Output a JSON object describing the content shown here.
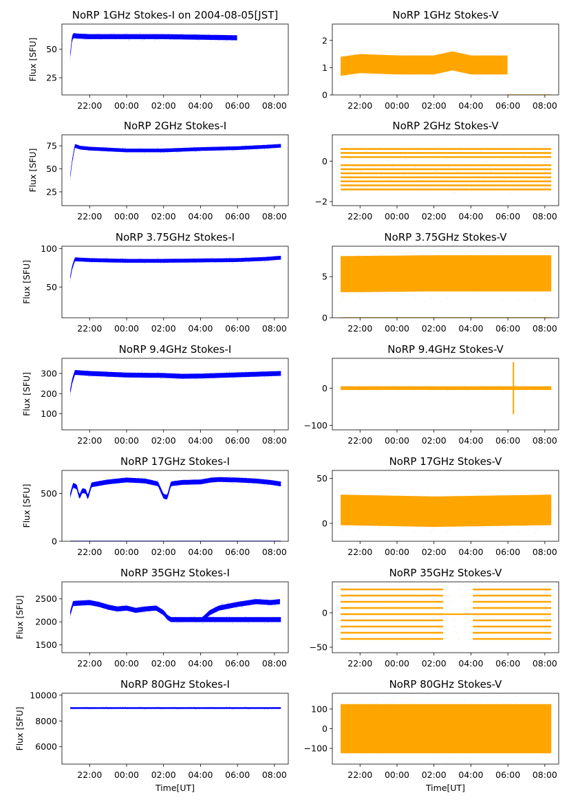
{
  "chart_data": [
    {
      "type": "scatter",
      "title": "NoRP 1GHz Stokes-I on 2004-08-05[JST]",
      "ylabel": "Flux [SFU]",
      "xlabel": "",
      "color": "#0000ff",
      "xlim": [
        20.5,
        32.75
      ],
      "ylim": [
        10,
        72
      ],
      "yticks": [
        25,
        50
      ],
      "yticklabels": [
        "25",
        "50"
      ],
      "xticks": [
        22,
        24,
        26,
        28,
        30,
        32
      ],
      "xticklabels": [
        "22:00",
        "00:00",
        "02:00",
        "04:00",
        "06:00",
        "08:00"
      ],
      "band": [
        [
          20.95,
          45
        ],
        [
          21.0,
          52
        ],
        [
          21.05,
          60
        ],
        [
          21.15,
          62
        ],
        [
          21.3,
          61.5
        ],
        [
          22,
          61
        ],
        [
          24,
          61
        ],
        [
          26,
          61
        ],
        [
          28,
          60.5
        ],
        [
          30,
          60
        ]
      ],
      "band_halfwidth": 2.2,
      "band_end": 29.98
    },
    {
      "type": "scatter",
      "title": "NoRP 1GHz Stokes-V",
      "ylabel": "",
      "xlabel": "",
      "color": "#ffa500",
      "xlim": [
        20.5,
        32.75
      ],
      "ylim": [
        0,
        2.6
      ],
      "yticks": [
        0,
        1,
        2
      ],
      "yticklabels": [
        "0",
        "1",
        "2"
      ],
      "xticks": [
        22,
        24,
        26,
        28,
        30,
        32
      ],
      "xticklabels": [
        "22:00",
        "00:00",
        "02:00",
        "04:00",
        "06:00",
        "08:00"
      ],
      "band": [
        [
          20.95,
          1.05
        ],
        [
          22,
          1.15
        ],
        [
          24,
          1.1
        ],
        [
          26,
          1.1
        ],
        [
          27,
          1.25
        ],
        [
          28,
          1.1
        ],
        [
          29.9,
          1.1
        ]
      ],
      "band_halfwidth": 0.35,
      "band_end": 29.98,
      "baseline": 0
    },
    {
      "type": "scatter",
      "title": "NoRP 2GHz Stokes-I",
      "ylabel": "Flux [SFU]",
      "xlabel": "",
      "color": "#0000ff",
      "xlim": [
        20.5,
        32.75
      ],
      "ylim": [
        10,
        87
      ],
      "yticks": [
        25,
        50,
        75
      ],
      "yticklabels": [
        "25",
        "50",
        "75"
      ],
      "xticks": [
        22,
        24,
        26,
        28,
        30,
        32
      ],
      "xticklabels": [
        "22:00",
        "00:00",
        "02:00",
        "04:00",
        "06:00",
        "08:00"
      ],
      "band": [
        [
          20.95,
          42
        ],
        [
          21.05,
          58
        ],
        [
          21.2,
          75
        ],
        [
          21.5,
          73
        ],
        [
          22,
          72
        ],
        [
          24,
          70
        ],
        [
          26,
          70
        ],
        [
          28,
          71.5
        ],
        [
          30,
          72.5
        ],
        [
          31.5,
          74
        ],
        [
          32.3,
          75
        ]
      ],
      "band_halfwidth": 2.0,
      "band_end": 32.35
    },
    {
      "type": "scatter",
      "title": "NoRP 2GHz Stokes-V",
      "ylabel": "",
      "xlabel": "",
      "color": "#ffa500",
      "xlim": [
        20.5,
        32.75
      ],
      "ylim": [
        -2.2,
        1.3
      ],
      "yticks": [
        -2,
        0
      ],
      "yticklabels": [
        "−2",
        "0"
      ],
      "xticks": [
        22,
        24,
        26,
        28,
        30,
        32
      ],
      "xticklabels": [
        "22:00",
        "00:00",
        "02:00",
        "04:00",
        "06:00",
        "08:00"
      ],
      "levels": [
        -1.4,
        -1.2,
        -1.0,
        -0.8,
        -0.6,
        -0.4,
        -0.2,
        0.2,
        0.4,
        0.6
      ],
      "band_end": 32.35
    },
    {
      "type": "scatter",
      "title": "NoRP 3.75GHz Stokes-I",
      "ylabel": "Flux [SFU]",
      "xlabel": "",
      "color": "#0000ff",
      "xlim": [
        20.5,
        32.75
      ],
      "ylim": [
        10,
        103
      ],
      "yticks": [
        50,
        100
      ],
      "yticklabels": [
        "50",
        "100"
      ],
      "xticks": [
        22,
        24,
        26,
        28,
        30,
        32
      ],
      "xticklabels": [
        "22:00",
        "00:00",
        "02:00",
        "04:00",
        "06:00",
        "08:00"
      ],
      "band": [
        [
          20.95,
          62
        ],
        [
          21.05,
          75
        ],
        [
          21.2,
          86
        ],
        [
          22,
          85
        ],
        [
          24,
          84
        ],
        [
          26,
          84
        ],
        [
          28,
          84.5
        ],
        [
          30,
          85
        ],
        [
          31.5,
          86.5
        ],
        [
          32.3,
          88
        ]
      ],
      "band_halfwidth": 2.5,
      "band_end": 32.35
    },
    {
      "type": "scatter",
      "title": "NoRP 3.75GHz Stokes-V",
      "ylabel": "",
      "xlabel": "",
      "color": "#ffa500",
      "xlim": [
        20.5,
        32.75
      ],
      "ylim": [
        0,
        8.7
      ],
      "yticks": [
        0,
        5
      ],
      "yticklabels": [
        "0",
        "5"
      ],
      "xticks": [
        22,
        24,
        26,
        28,
        30,
        32
      ],
      "xticklabels": [
        "22:00",
        "00:00",
        "02:00",
        "04:00",
        "06:00",
        "08:00"
      ],
      "band": [
        [
          20.95,
          5.3
        ],
        [
          26,
          5.4
        ],
        [
          32.3,
          5.4
        ]
      ],
      "band_halfwidth": 2.2,
      "band_end": 32.35,
      "baseline": 0
    },
    {
      "type": "scatter",
      "title": "NoRP 9.4GHz Stokes-I",
      "ylabel": "Flux [SFU]",
      "xlabel": "",
      "color": "#0000ff",
      "xlim": [
        20.5,
        32.75
      ],
      "ylim": [
        20,
        375
      ],
      "yticks": [
        100,
        200,
        300
      ],
      "yticklabels": [
        "100",
        "200",
        "300"
      ],
      "xticks": [
        22,
        24,
        26,
        28,
        30,
        32
      ],
      "xticklabels": [
        "22:00",
        "00:00",
        "02:00",
        "04:00",
        "06:00",
        "08:00"
      ],
      "band": [
        [
          20.95,
          210
        ],
        [
          21.05,
          260
        ],
        [
          21.2,
          305
        ],
        [
          22,
          300
        ],
        [
          24,
          292
        ],
        [
          26,
          290
        ],
        [
          27,
          286
        ],
        [
          28,
          287
        ],
        [
          30,
          293
        ],
        [
          32.3,
          300
        ]
      ],
      "band_halfwidth": 12,
      "band_end": 32.35
    },
    {
      "type": "scatter",
      "title": "NoRP 9.4GHz Stokes-V",
      "ylabel": "",
      "xlabel": "",
      "color": "#ffa500",
      "xlim": [
        20.5,
        32.75
      ],
      "ylim": [
        -112,
        80
      ],
      "yticks": [
        -100,
        0
      ],
      "yticklabels": [
        "−100",
        "0"
      ],
      "xticks": [
        22,
        24,
        26,
        28,
        30,
        32
      ],
      "xticklabels": [
        "22:00",
        "00:00",
        "02:00",
        "04:00",
        "06:00",
        "08:00"
      ],
      "band": [
        [
          20.95,
          0
        ],
        [
          32.3,
          0
        ]
      ],
      "band_halfwidth": 5,
      "band_end": 32.35,
      "spike": [
        30.3,
        -70,
        70
      ]
    },
    {
      "type": "scatter",
      "title": "NoRP 17GHz Stokes-I",
      "ylabel": "Flux [SFU]",
      "xlabel": "",
      "color": "#0000ff",
      "xlim": [
        20.5,
        32.75
      ],
      "ylim": [
        0,
        740
      ],
      "yticks": [
        0,
        500
      ],
      "yticklabels": [
        "0",
        "500"
      ],
      "xticks": [
        22,
        24,
        26,
        28,
        30,
        32
      ],
      "xticklabels": [
        "22:00",
        "00:00",
        "02:00",
        "04:00",
        "06:00",
        "08:00"
      ],
      "band": [
        [
          20.95,
          480
        ],
        [
          21.1,
          585
        ],
        [
          21.3,
          570
        ],
        [
          21.45,
          460
        ],
        [
          21.6,
          530
        ],
        [
          21.8,
          520
        ],
        [
          21.9,
          455
        ],
        [
          22.1,
          590
        ],
        [
          23,
          620
        ],
        [
          24,
          640
        ],
        [
          25,
          630
        ],
        [
          25.7,
          600
        ],
        [
          26,
          470
        ],
        [
          26.2,
          460
        ],
        [
          26.4,
          600
        ],
        [
          27,
          615
        ],
        [
          28,
          620
        ],
        [
          28.6,
          640
        ],
        [
          29,
          645
        ],
        [
          30,
          640
        ],
        [
          31,
          630
        ],
        [
          31.8,
          615
        ],
        [
          32.3,
          600
        ]
      ],
      "band_halfwidth": 25,
      "band_end": 32.35,
      "baseline": 0
    },
    {
      "type": "scatter",
      "title": "NoRP 17GHz Stokes-V",
      "ylabel": "",
      "xlabel": "",
      "color": "#ffa500",
      "xlim": [
        20.5,
        32.75
      ],
      "ylim": [
        -20,
        59
      ],
      "yticks": [
        0,
        50
      ],
      "yticklabels": [
        "0",
        "50"
      ],
      "xticks": [
        22,
        24,
        26,
        28,
        30,
        32
      ],
      "xticklabels": [
        "22:00",
        "00:00",
        "02:00",
        "04:00",
        "06:00",
        "08:00"
      ],
      "band": [
        [
          20.95,
          15
        ],
        [
          26,
          13
        ],
        [
          32.3,
          15
        ]
      ],
      "band_halfwidth": 17,
      "band_end": 32.35
    },
    {
      "type": "scatter",
      "title": "NoRP 35GHz Stokes-I",
      "ylabel": "Flux [SFU]",
      "xlabel": "",
      "color": "#0000ff",
      "xlim": [
        20.5,
        32.75
      ],
      "ylim": [
        1330,
        2870
      ],
      "yticks": [
        1500,
        2000,
        2500
      ],
      "yticklabels": [
        "1500",
        "2000",
        "2500"
      ],
      "xticks": [
        22,
        24,
        26,
        28,
        30,
        32
      ],
      "xticklabels": [
        "22:00",
        "00:00",
        "02:00",
        "04:00",
        "06:00",
        "08:00"
      ],
      "band": [
        [
          20.95,
          2180
        ],
        [
          21.1,
          2400
        ],
        [
          22,
          2420
        ],
        [
          22.5,
          2380
        ],
        [
          23,
          2320
        ],
        [
          23.5,
          2280
        ],
        [
          24,
          2300
        ],
        [
          24.5,
          2250
        ],
        [
          25,
          2280
        ],
        [
          25.6,
          2300
        ],
        [
          26,
          2200
        ],
        [
          26.2,
          2100
        ],
        [
          26.4,
          2050
        ]
      ],
      "band2": [
        [
          28.1,
          2050
        ],
        [
          28.5,
          2200
        ],
        [
          29,
          2300
        ],
        [
          30,
          2380
        ],
        [
          31,
          2440
        ],
        [
          31.8,
          2420
        ],
        [
          32.3,
          2440
        ]
      ],
      "band_halfwidth": 55,
      "band_end": 32.35
    },
    {
      "type": "scatter",
      "title": "NoRP 35GHz Stokes-V",
      "ylabel": "",
      "xlabel": "",
      "color": "#ffa500",
      "xlim": [
        20.5,
        32.75
      ],
      "ylim": [
        -58,
        45
      ],
      "yticks": [
        -50,
        0
      ],
      "yticklabels": [
        "−50",
        "0"
      ],
      "xticks": [
        22,
        24,
        26,
        28,
        30,
        32
      ],
      "xticklabels": [
        "22:00",
        "00:00",
        "02:00",
        "04:00",
        "06:00",
        "08:00"
      ],
      "levels": [
        -38,
        -29,
        -20,
        -11,
        -2,
        7,
        16,
        25,
        34
      ],
      "gap": [
        26.5,
        28.1
      ],
      "band_end": 32.35
    },
    {
      "type": "scatter",
      "title": "NoRP 80GHz Stokes-I",
      "ylabel": "Flux [SFU]",
      "xlabel": "Time[UT]",
      "color": "#0000ff",
      "xlim": [
        20.5,
        32.75
      ],
      "ylim": [
        4650,
        10150
      ],
      "yticks": [
        6000,
        8000,
        10000
      ],
      "yticklabels": [
        "6000",
        "8000",
        "10000"
      ],
      "xticks": [
        22,
        24,
        26,
        28,
        30,
        32
      ],
      "xticklabels": [
        "22:00",
        "00:00",
        "02:00",
        "04:00",
        "06:00",
        "08:00"
      ],
      "band": [
        [
          20.95,
          9000
        ],
        [
          32.3,
          9000
        ]
      ],
      "band_halfwidth": 70,
      "band_end": 32.35
    },
    {
      "type": "scatter",
      "title": "NoRP 80GHz Stokes-V",
      "ylabel": "",
      "xlabel": "Time[UT]",
      "color": "#ffa500",
      "xlim": [
        20.5,
        32.75
      ],
      "ylim": [
        -180,
        180
      ],
      "yticks": [
        -100,
        0,
        100
      ],
      "yticklabels": [
        "−100",
        "0",
        "100"
      ],
      "xticks": [
        22,
        24,
        26,
        28,
        30,
        32
      ],
      "xticklabels": [
        "22:00",
        "00:00",
        "02:00",
        "04:00",
        "06:00",
        "08:00"
      ],
      "band": [
        [
          20.95,
          0
        ],
        [
          32.3,
          0
        ]
      ],
      "band_halfwidth": 125,
      "band_end": 32.35
    }
  ]
}
